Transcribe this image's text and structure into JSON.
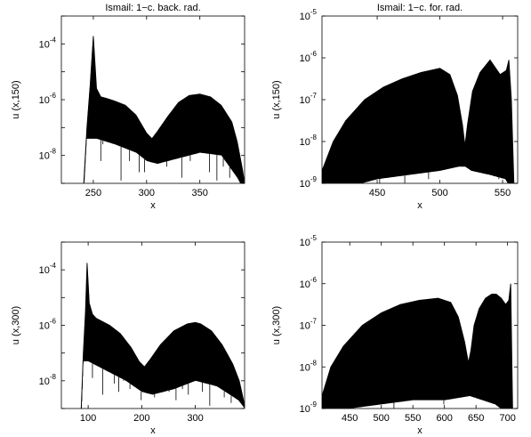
{
  "chart_data": [
    {
      "type": "line",
      "title": "Ismail: 1−c. back. rad.",
      "xlabel": "x",
      "ylabel": "u (x,150)",
      "xlim": [
        220,
        392
      ],
      "yscale": "log",
      "ylim_exp": [
        -9,
        -3
      ],
      "xticks": [
        250,
        300,
        350
      ],
      "ytick_labels": [
        {
          "exp": -4
        },
        {
          "exp": -6
        },
        {
          "exp": -8
        }
      ],
      "envelope": {
        "x": [
          241,
          244,
          247,
          250,
          253,
          257,
          262,
          270,
          280,
          290,
          300,
          305,
          310,
          320,
          330,
          340,
          350,
          360,
          370,
          380,
          385,
          390,
          392
        ],
        "log10y": [
          -9.2,
          -7.0,
          -5.5,
          -3.72,
          -5.6,
          -5.9,
          -5.95,
          -6.05,
          -6.2,
          -6.55,
          -7.2,
          -7.4,
          -7.15,
          -6.6,
          -6.1,
          -5.85,
          -5.8,
          -5.9,
          -6.2,
          -6.8,
          -7.5,
          -8.5,
          -9.2
        ]
      },
      "floor": {
        "x": [
          253,
          270,
          290,
          300,
          310,
          330,
          350,
          370,
          385,
          392
        ],
        "log10y": [
          -7.4,
          -7.6,
          -7.9,
          -8.2,
          -8.3,
          -8.1,
          -7.9,
          -8.0,
          -8.8,
          -9.3
        ]
      },
      "spikes": {
        "x": [
          257,
          259,
          268,
          276,
          284,
          293,
          298,
          304,
          313,
          319,
          326,
          333,
          341,
          346,
          352,
          359,
          366,
          372,
          378
        ],
        "log10y": [
          -8.2,
          -7.6,
          -7.0,
          -8.9,
          -8.2,
          -8.6,
          -8.6,
          -7.8,
          -7.9,
          -8.4,
          -7.6,
          -8.8,
          -8.2,
          -7.6,
          -7.7,
          -8.6,
          -8.9,
          -8.4,
          -8.8
        ]
      }
    },
    {
      "type": "line",
      "title": "Ismail: 1−c. for. rad.",
      "xlabel": "x",
      "ylabel": "u (x,150)",
      "xlim": [
        406,
        562
      ],
      "yscale": "log",
      "ylim_exp": [
        -9,
        -5
      ],
      "xticks": [
        450,
        500,
        550
      ],
      "ytick_labels": [
        {
          "exp": -5
        },
        {
          "exp": -6
        },
        {
          "exp": -7
        },
        {
          "exp": -8
        },
        {
          "exp": -9
        }
      ],
      "envelope": {
        "x": [
          406,
          415,
          425,
          440,
          455,
          470,
          485,
          500,
          508,
          514,
          518,
          520,
          522,
          526,
          532,
          540,
          548,
          553,
          555,
          557,
          559
        ],
        "log10y": [
          -8.7,
          -8.0,
          -7.5,
          -7.0,
          -6.7,
          -6.5,
          -6.35,
          -6.25,
          -6.4,
          -6.9,
          -7.6,
          -8.1,
          -7.6,
          -6.8,
          -6.35,
          -6.05,
          -6.4,
          -6.3,
          -6.05,
          -7.0,
          -9.2
        ]
      },
      "floor": {
        "x": [
          406,
          425,
          450,
          475,
          500,
          515,
          520,
          525,
          540,
          552,
          558
        ],
        "log10y": [
          -9.2,
          -9.1,
          -8.9,
          -8.8,
          -8.7,
          -8.6,
          -8.6,
          -8.7,
          -8.8,
          -8.9,
          -9.2
        ]
      },
      "spikes": {
        "x": [
          418,
          424,
          431,
          437,
          445,
          452,
          458,
          463,
          469,
          472,
          478,
          486,
          491,
          498,
          506,
          530,
          536,
          543,
          547
        ],
        "log10y": [
          -9.2,
          -8.5,
          -8.8,
          -9.2,
          -8.3,
          -9.2,
          -8.2,
          -8.7,
          -8.1,
          -9.2,
          -8.6,
          -8.3,
          -8.9,
          -8.5,
          -8.1,
          -8.2,
          -8.6,
          -8.3,
          -8.9
        ]
      }
    },
    {
      "type": "line",
      "title": "",
      "xlabel": "x",
      "ylabel": "u (x,300)",
      "xlim": [
        50,
        392
      ],
      "yscale": "log",
      "ylim_exp": [
        -9,
        -3
      ],
      "xticks": [
        100,
        200,
        300
      ],
      "ytick_labels": [
        {
          "exp": -4
        },
        {
          "exp": -6
        },
        {
          "exp": -8
        }
      ],
      "envelope": {
        "x": [
          87,
          91,
          95,
          98,
          102,
          108,
          115,
          125,
          140,
          160,
          180,
          195,
          205,
          215,
          235,
          260,
          285,
          300,
          310,
          330,
          350,
          370,
          382,
          390,
          392
        ],
        "log10y": [
          -9.2,
          -7.0,
          -5.5,
          -3.75,
          -5.2,
          -5.6,
          -5.75,
          -5.85,
          -6.0,
          -6.3,
          -6.8,
          -7.3,
          -7.5,
          -7.25,
          -6.7,
          -6.2,
          -5.95,
          -5.9,
          -5.95,
          -6.2,
          -6.7,
          -7.4,
          -8.0,
          -8.7,
          -9.0
        ]
      },
      "floor": {
        "x": [
          100,
          130,
          170,
          200,
          220,
          260,
          300,
          340,
          380,
          392
        ],
        "log10y": [
          -7.3,
          -7.6,
          -8.0,
          -8.4,
          -8.5,
          -8.3,
          -8.0,
          -8.2,
          -8.7,
          -9.0
        ]
      },
      "spikes": {
        "x": [
          108,
          118,
          127,
          136,
          149,
          157,
          166,
          178,
          186,
          199,
          212,
          224,
          238,
          251,
          264,
          276,
          287,
          299,
          313,
          327,
          341,
          354,
          367,
          378
        ],
        "log10y": [
          -7.9,
          -7.2,
          -8.5,
          -7.1,
          -8.1,
          -8.4,
          -8.0,
          -8.3,
          -8.0,
          -8.7,
          -8.2,
          -8.6,
          -7.8,
          -8.4,
          -8.7,
          -8.3,
          -8.5,
          -6.5,
          -8.4,
          -8.9,
          -8.1,
          -8.6,
          -8.8,
          -8.3
        ]
      }
    },
    {
      "type": "line",
      "title": "",
      "xlabel": "x",
      "ylabel": "u (x,300)",
      "xlim": [
        406,
        716
      ],
      "yscale": "log",
      "ylim_exp": [
        -9,
        -5
      ],
      "xticks": [
        450,
        500,
        550,
        600,
        650,
        700
      ],
      "ytick_labels": [
        {
          "exp": -5
        },
        {
          "exp": -6
        },
        {
          "exp": -7
        },
        {
          "exp": -8
        },
        {
          "exp": -9
        }
      ],
      "envelope": {
        "x": [
          406,
          420,
          440,
          470,
          500,
          530,
          560,
          590,
          610,
          622,
          632,
          638,
          642,
          647,
          655,
          665,
          675,
          682,
          690,
          697,
          702,
          705,
          708
        ],
        "log10y": [
          -8.7,
          -8.0,
          -7.5,
          -7.0,
          -6.7,
          -6.5,
          -6.4,
          -6.35,
          -6.45,
          -6.8,
          -7.4,
          -7.9,
          -7.6,
          -7.0,
          -6.6,
          -6.35,
          -6.25,
          -6.25,
          -6.35,
          -6.5,
          -6.4,
          -6.0,
          -9.2
        ]
      },
      "floor": {
        "x": [
          406,
          450,
          500,
          550,
          600,
          640,
          680,
          706
        ],
        "log10y": [
          -9.2,
          -9.0,
          -8.9,
          -8.8,
          -8.8,
          -8.7,
          -8.9,
          -9.2
        ]
      },
      "spikes": {
        "x": [
          431,
          443,
          455,
          468,
          481,
          493,
          507,
          520,
          533,
          547,
          561,
          574,
          587,
          599,
          613,
          626,
          652,
          666,
          678,
          690,
          700
        ],
        "log10y": [
          -8.3,
          -9.2,
          -8.6,
          -8.1,
          -8.8,
          -8.4,
          -8.2,
          -9.0,
          -8.4,
          -8.7,
          -8.0,
          -8.5,
          -8.2,
          -8.9,
          -8.3,
          -8.6,
          -8.1,
          -8.7,
          -8.3,
          -8.6,
          -9.0
        ]
      }
    }
  ]
}
